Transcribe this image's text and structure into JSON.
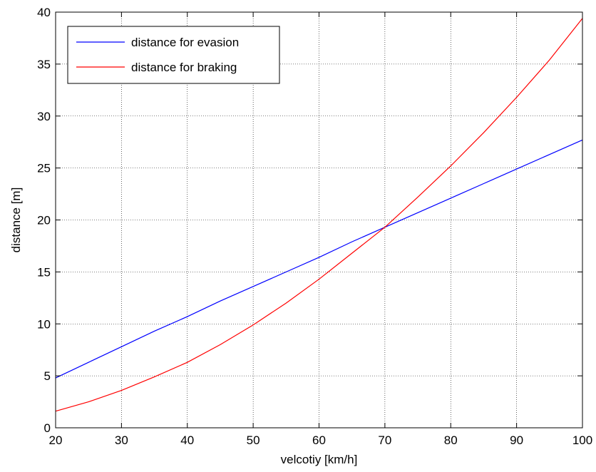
{
  "chart_data": {
    "type": "line",
    "title": "",
    "xlabel": "velcotiy [km/h]",
    "ylabel": "distance [m]",
    "xlim": [
      20,
      100
    ],
    "ylim": [
      0,
      40
    ],
    "xticks": [
      20,
      30,
      40,
      50,
      60,
      70,
      80,
      90,
      100
    ],
    "yticks": [
      0,
      5,
      10,
      15,
      20,
      25,
      30,
      35,
      40
    ],
    "grid": true,
    "legend_position": "top-left",
    "x": [
      20,
      25,
      30,
      35,
      40,
      45,
      50,
      55,
      60,
      65,
      70,
      75,
      80,
      85,
      90,
      95,
      100
    ],
    "series": [
      {
        "name": "distance for evasion",
        "color": "#0000ff",
        "values": [
          4.8,
          6.3,
          7.8,
          9.3,
          10.7,
          12.2,
          13.6,
          15.0,
          16.4,
          17.9,
          19.3,
          20.7,
          22.1,
          23.5,
          24.9,
          26.3,
          27.7
        ]
      },
      {
        "name": "distance for braking",
        "color": "#ff0000",
        "values": [
          1.6,
          2.5,
          3.6,
          4.9,
          6.3,
          8.0,
          9.9,
          12.0,
          14.3,
          16.8,
          19.3,
          22.2,
          25.2,
          28.4,
          31.8,
          35.4,
          39.4
        ]
      }
    ]
  }
}
